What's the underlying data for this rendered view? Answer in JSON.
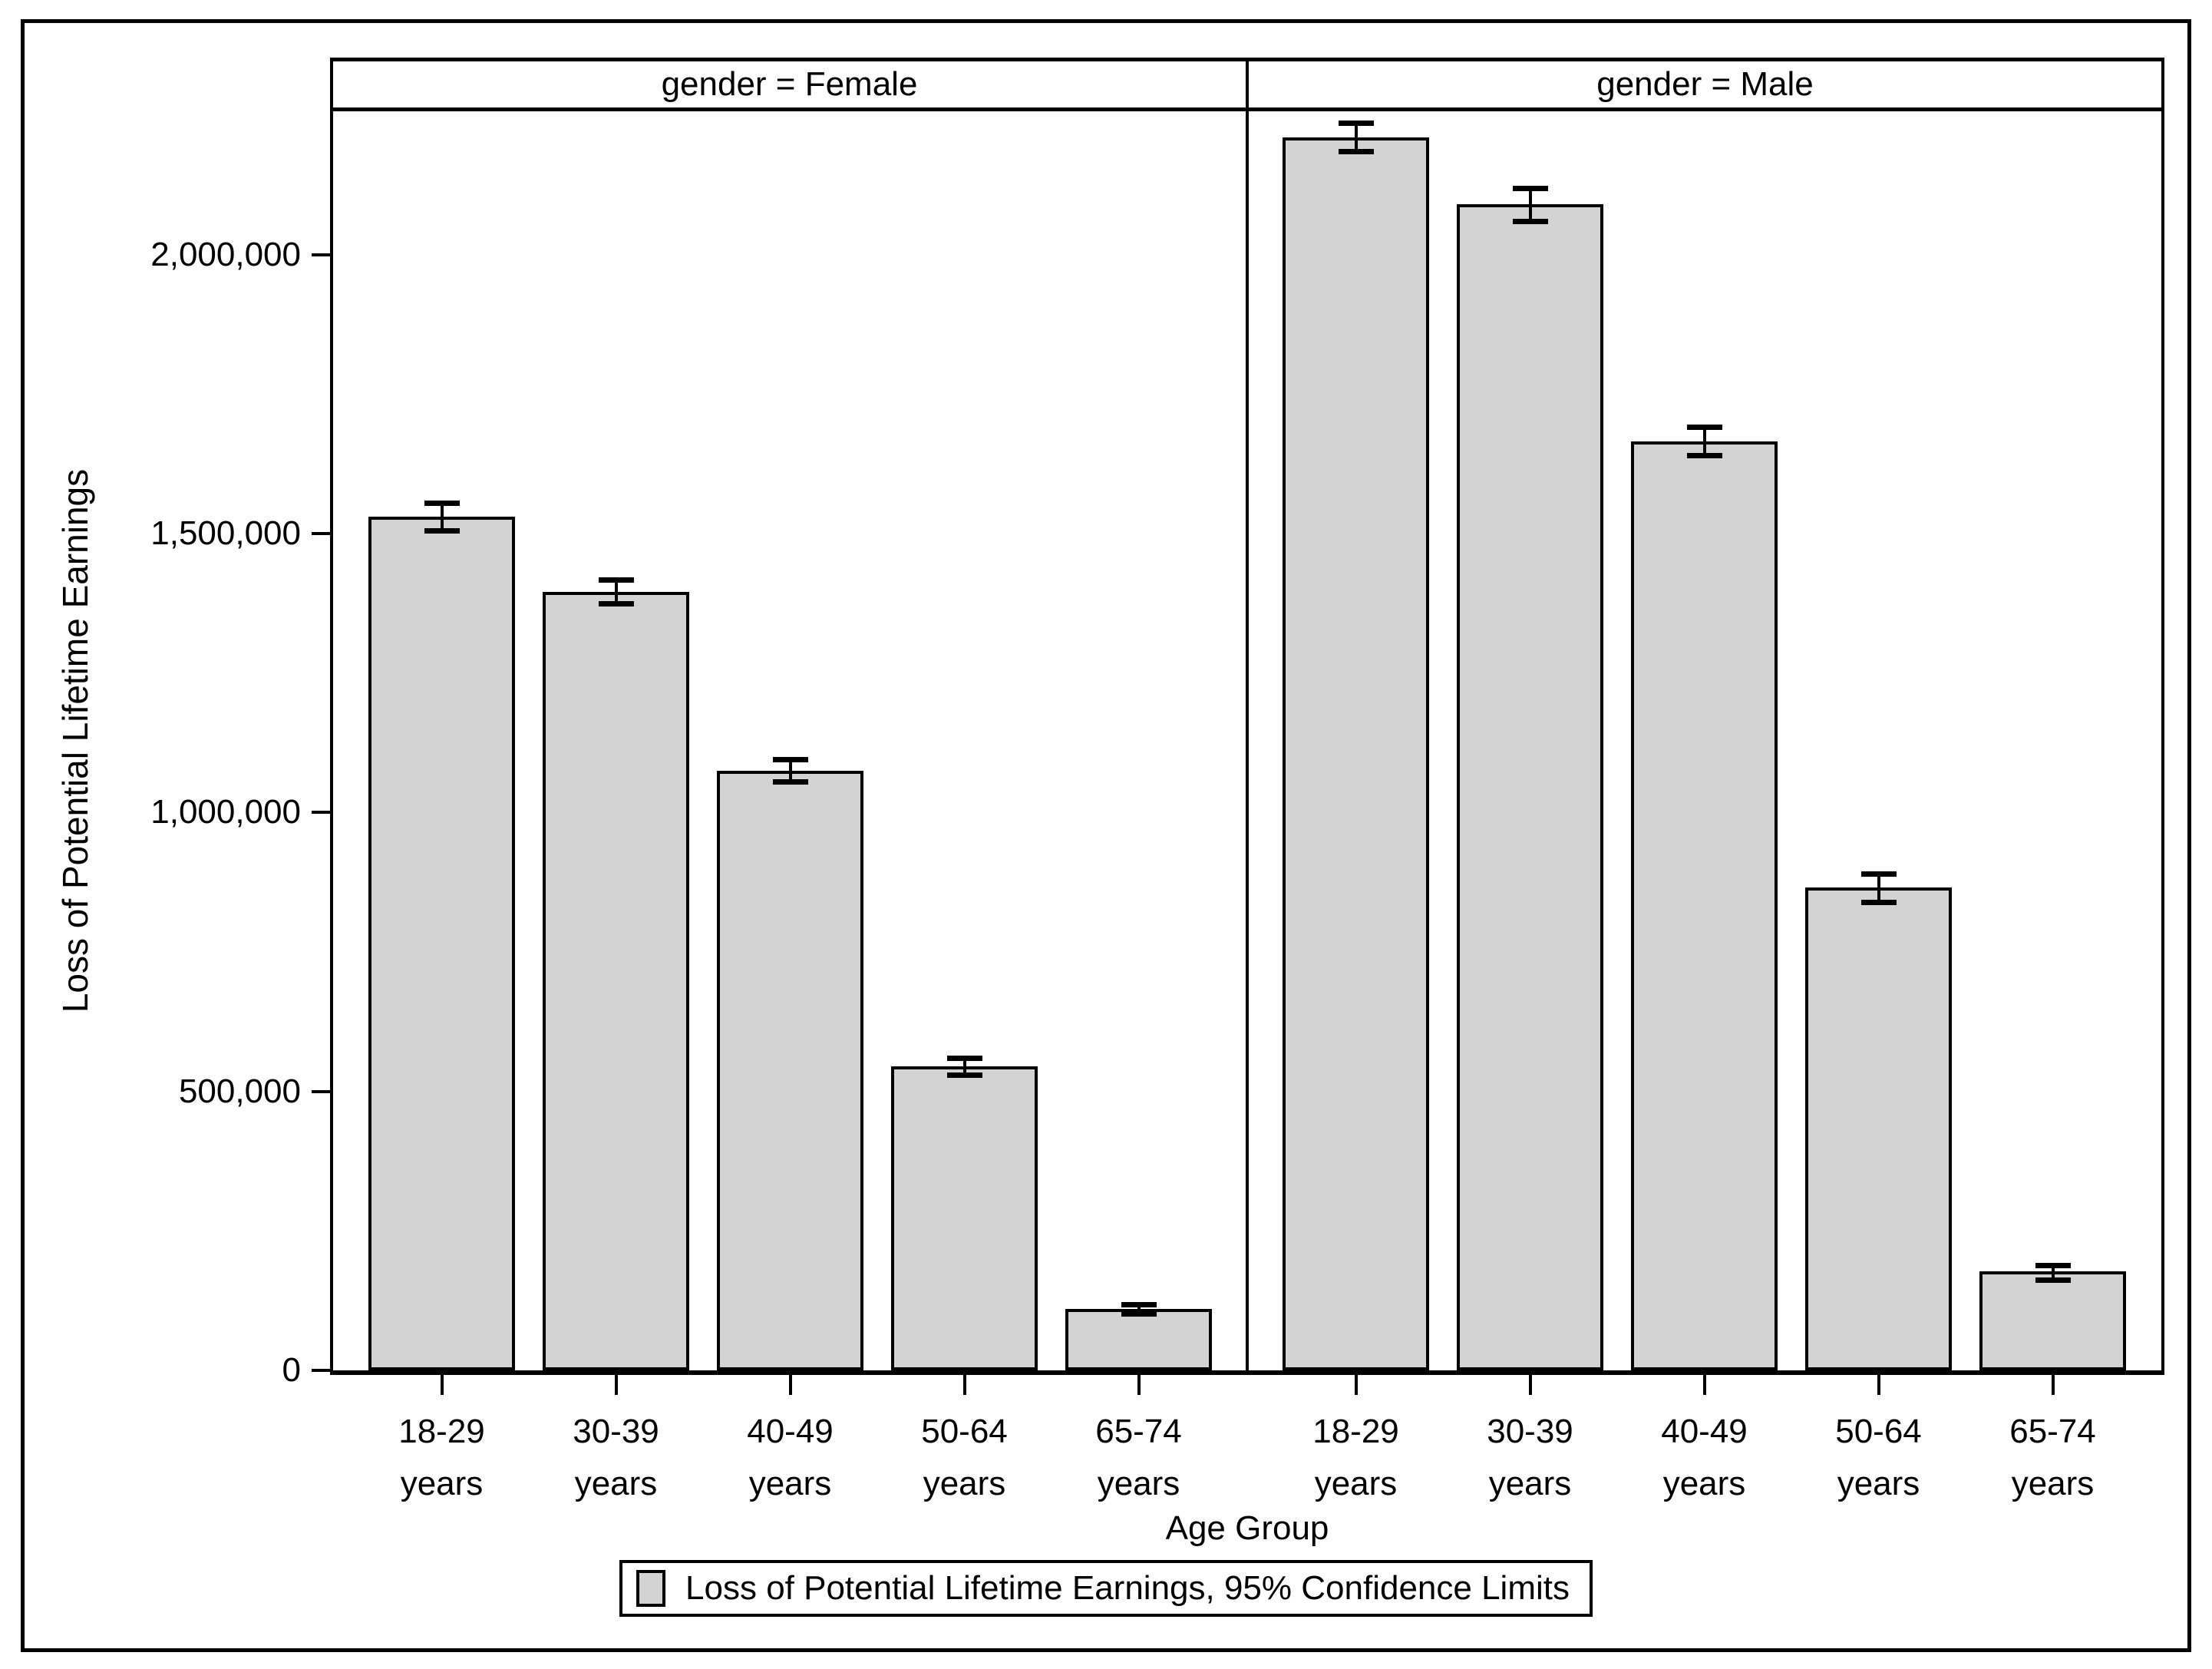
{
  "chart_data": {
    "type": "bar",
    "ylabel": "Loss of Potential Lifetime Earnings",
    "xlabel": "Age Group",
    "ylim": [
      0,
      2257000
    ],
    "grid": false,
    "legend_position": "bottom-center",
    "yticks": [
      {
        "value": 0,
        "label": "0"
      },
      {
        "value": 500000,
        "label": "500,000"
      },
      {
        "value": 1000000,
        "label": "1,000,000"
      },
      {
        "value": 1500000,
        "label": "1,500,000"
      },
      {
        "value": 2000000,
        "label": "2,000,000"
      }
    ],
    "categories": [
      [
        "18-29",
        "years"
      ],
      [
        "30-39",
        "years"
      ],
      [
        "40-49",
        "years"
      ],
      [
        "50-64",
        "years"
      ],
      [
        "65-74",
        "years"
      ]
    ],
    "panels": [
      {
        "id": "female",
        "title": "gender = Female",
        "values": [
          1530000,
          1395000,
          1075000,
          545000,
          110000
        ],
        "ci_low": [
          1505000,
          1375000,
          1055000,
          530000,
          102000
        ],
        "ci_high": [
          1555000,
          1417000,
          1095000,
          560000,
          118000
        ]
      },
      {
        "id": "male",
        "title": "gender = Male",
        "values": [
          2210000,
          2090000,
          1665000,
          865000,
          178000
        ],
        "ci_low": [
          2185000,
          2060000,
          1640000,
          840000,
          162000
        ],
        "ci_high": [
          2237000,
          2120000,
          1692000,
          890000,
          188000
        ]
      }
    ],
    "colors": {
      "bar_fill": "#d3d3d3",
      "bar_border": "#000000",
      "error_bar": "#000000",
      "background": "#ffffff",
      "text": "#000000"
    },
    "legend": {
      "swatch_color": "#d3d3d3",
      "label": "Loss of Potential Lifetime Earnings, 95% Confidence Limits"
    }
  }
}
